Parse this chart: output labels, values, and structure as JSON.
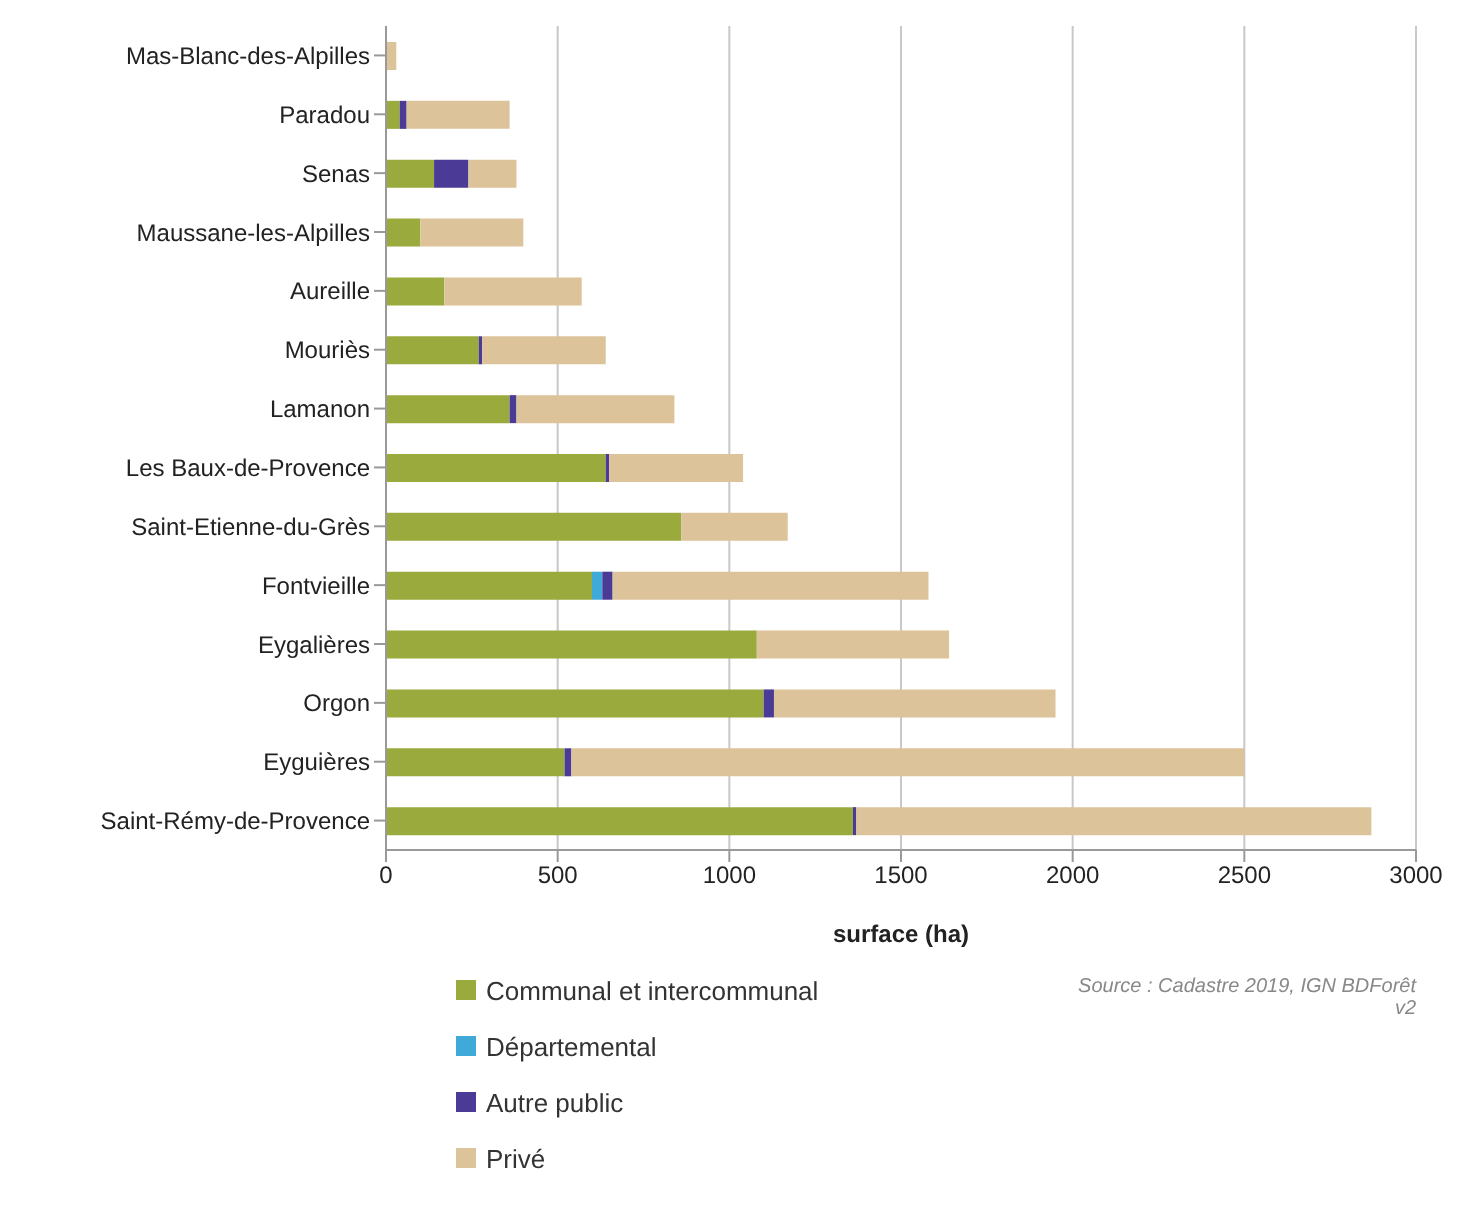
{
  "chart_data": {
    "type": "bar",
    "orientation": "horizontal",
    "stacked": true,
    "xlabel": "surface (ha)",
    "categories": [
      "Mas-Blanc-des-Alpilles",
      "Paradou",
      "Senas",
      "Maussane-les-Alpilles",
      "Aureille",
      "Mouriès",
      "Lamanon",
      "Les Baux-de-Provence",
      "Saint-Etienne-du-Grès",
      "Fontvieille",
      "Eygalières",
      "Orgon",
      "Eyguières",
      "Saint-Rémy-de-Provence"
    ],
    "series": [
      {
        "name": "Communal et intercommunal",
        "color": "#9aaa3c",
        "values": [
          0,
          40,
          140,
          100,
          170,
          270,
          360,
          640,
          860,
          600,
          1080,
          1100,
          520,
          1360
        ]
      },
      {
        "name": "Départemental",
        "color": "#3fa9d8",
        "values": [
          0,
          0,
          0,
          0,
          0,
          0,
          0,
          0,
          0,
          30,
          0,
          0,
          0,
          0
        ]
      },
      {
        "name": "Autre public",
        "color": "#4b3a96",
        "values": [
          0,
          20,
          100,
          0,
          0,
          10,
          20,
          10,
          0,
          30,
          0,
          30,
          20,
          10
        ]
      },
      {
        "name": "Privé",
        "color": "#dcc39a",
        "values": [
          30,
          300,
          140,
          300,
          400,
          360,
          460,
          390,
          310,
          920,
          560,
          820,
          1960,
          1500
        ]
      }
    ],
    "xlim": [
      0,
      3000
    ],
    "xticks": [
      0,
      500,
      1000,
      1500,
      2000,
      2500,
      3000
    ],
    "grid": "x",
    "legend": "bottom",
    "annotations": [
      "Source : Cadastre 2019, IGN BDForêt v2"
    ]
  }
}
